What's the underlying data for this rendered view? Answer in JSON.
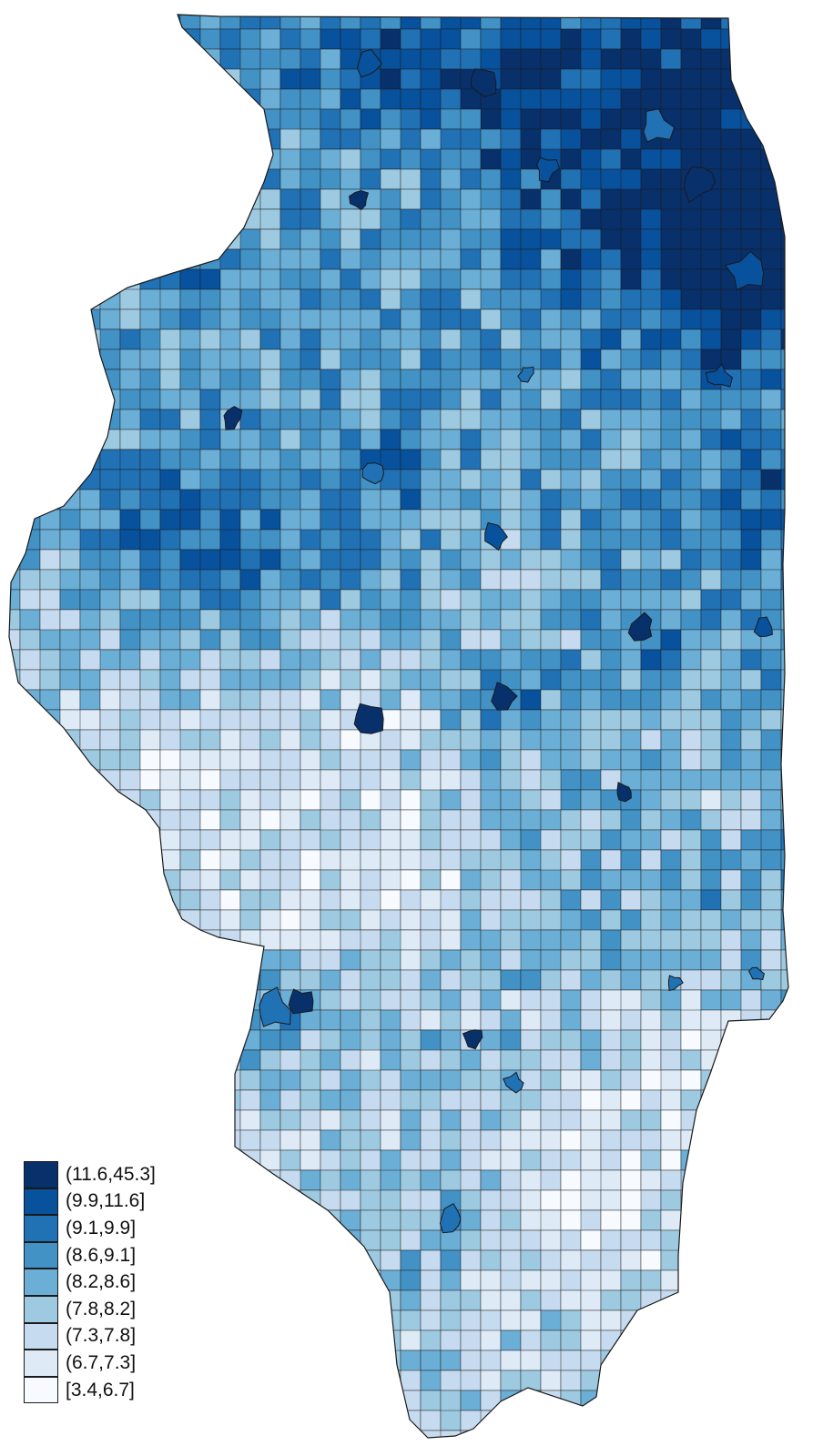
{
  "map": {
    "region": "Illinois",
    "unit": "census tracts",
    "palette": [
      "#f7fbff",
      "#deebf7",
      "#c6dbef",
      "#9ecae1",
      "#6baed6",
      "#4292c6",
      "#2171b5",
      "#08519c",
      "#08306b"
    ],
    "border_color": "#1a1a1a"
  },
  "legend": {
    "items": [
      {
        "label": "(11.6,45.3]",
        "color": "#08306b"
      },
      {
        "label": "(9.9,11.6]",
        "color": "#08519c"
      },
      {
        "label": "(9.1,9.9]",
        "color": "#2171b5"
      },
      {
        "label": "(8.6,9.1]",
        "color": "#4292c6"
      },
      {
        "label": "(8.2,8.6]",
        "color": "#6baed6"
      },
      {
        "label": "(7.8,8.2]",
        "color": "#9ecae1"
      },
      {
        "label": "(7.3,7.8]",
        "color": "#c6dbef"
      },
      {
        "label": "(6.7,7.3]",
        "color": "#deebf7"
      },
      {
        "label": "[3.4,6.7]",
        "color": "#f7fbff"
      }
    ]
  }
}
